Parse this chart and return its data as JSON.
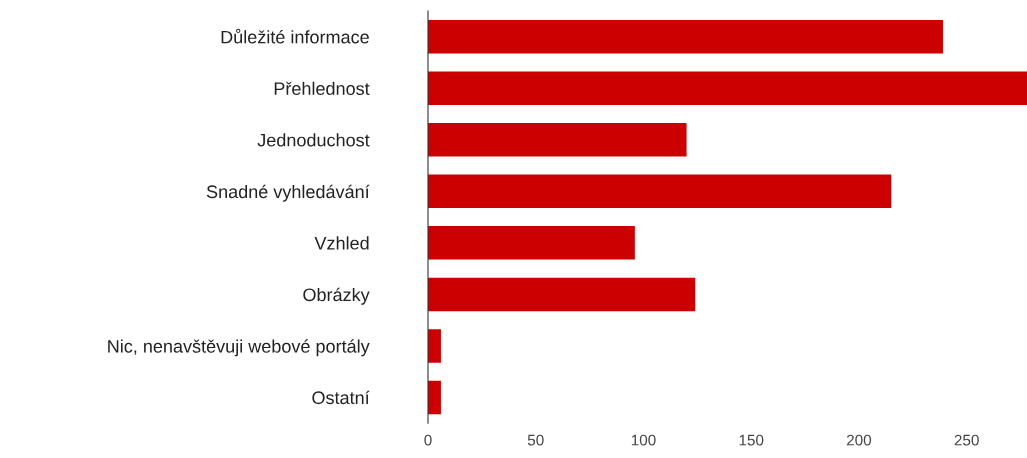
{
  "chart_data": {
    "type": "bar",
    "orientation": "horizontal",
    "categories": [
      "Důležité informace",
      "Přehlednost",
      "Jednoduchost",
      "Snadné vyhledávání",
      "Vzhled",
      "Obrázky",
      "Nic, nenavštěvuji webové portály",
      "Ostatní"
    ],
    "values": [
      239,
      278,
      120,
      215,
      96,
      124,
      6,
      6
    ],
    "color": "#cc0000",
    "xlim": [
      0,
      278
    ],
    "xticks": [
      0,
      50,
      100,
      150,
      200,
      250
    ],
    "grid": false,
    "legend": false
  }
}
